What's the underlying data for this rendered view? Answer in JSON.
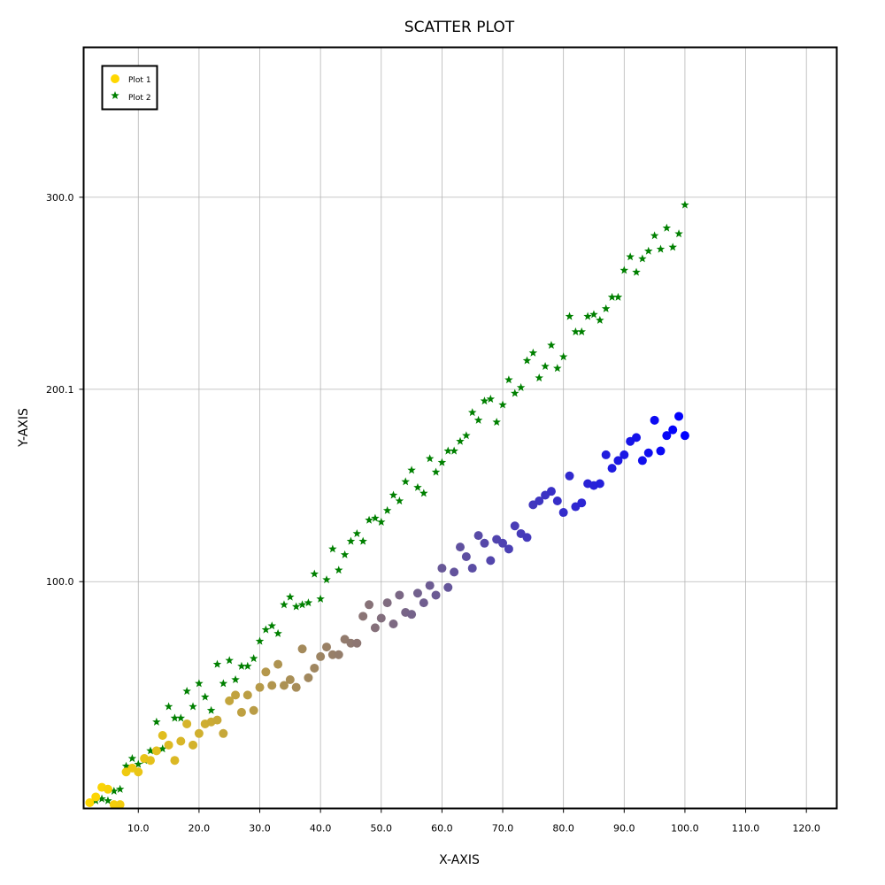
{
  "chart_data": {
    "type": "scatter",
    "title": "SCATTER PLOT",
    "xlabel": "X-AXIS",
    "ylabel": "Y-AXIS",
    "xlim": [
      1.0,
      125.0
    ],
    "ylim": [
      -18.0,
      378.0
    ],
    "xticks": [
      10.0,
      20.0,
      30.0,
      40.0,
      50.0,
      60.0,
      70.0,
      80.0,
      90.0,
      100.0,
      110.0,
      120.0
    ],
    "xtick_labels": [
      "10.0",
      "20.0",
      "30.0",
      "40.0",
      "50.0",
      "60.0",
      "70.0",
      "80.0",
      "90.0",
      "100.0",
      "110.0",
      "120.0"
    ],
    "yticks": [
      100.0,
      200.1,
      300.0
    ],
    "ytick_labels": [
      "100.0",
      "200.1",
      "300.0"
    ],
    "grid": true,
    "legend_position": "top-left",
    "series": [
      {
        "name": "Plot 1",
        "marker": "circle",
        "color_gradient": [
          "#ffd700",
          "#0000ff"
        ],
        "x": [
          2,
          3,
          4,
          5,
          6,
          7,
          8,
          9,
          10,
          11,
          12,
          13,
          14,
          15,
          16,
          17,
          18,
          19,
          20,
          21,
          22,
          23,
          24,
          25,
          26,
          27,
          28,
          29,
          30,
          31,
          32,
          33,
          34,
          35,
          36,
          37,
          38,
          39,
          40,
          41,
          42,
          43,
          44,
          45,
          46,
          47,
          48,
          49,
          50,
          51,
          52,
          53,
          54,
          55,
          56,
          57,
          58,
          59,
          60,
          61,
          62,
          63,
          64,
          65,
          66,
          67,
          68,
          69,
          70,
          71,
          72,
          73,
          74,
          75,
          76,
          77,
          78,
          79,
          80,
          81,
          82,
          83,
          84,
          85,
          86,
          87,
          88,
          89,
          90,
          91,
          92,
          93,
          94,
          95,
          96,
          97,
          98,
          99,
          100
        ],
        "y": [
          -15,
          -12,
          -7,
          -8,
          -16,
          -16,
          1,
          3,
          1,
          8,
          7,
          12,
          20,
          15,
          7,
          17,
          26,
          15,
          21,
          26,
          27,
          28,
          21,
          38,
          41,
          32,
          41,
          33,
          45,
          53,
          46,
          57,
          46,
          49,
          45,
          65,
          50,
          55,
          61,
          66,
          62,
          62,
          70,
          68,
          68,
          82,
          88,
          76,
          81,
          89,
          78,
          93,
          84,
          83,
          94,
          89,
          98,
          93,
          107,
          97,
          105,
          118,
          113,
          107,
          124,
          120,
          111,
          122,
          120,
          117,
          129,
          125,
          123,
          140,
          142,
          145,
          147,
          142,
          136,
          155,
          139,
          141,
          151,
          150,
          151,
          166,
          159,
          163,
          166,
          173,
          175,
          163,
          167,
          184,
          168,
          176,
          179,
          186,
          176
        ]
      },
      {
        "name": "Plot 2",
        "marker": "star",
        "color": "#008000",
        "x": [
          2,
          3,
          4,
          5,
          6,
          7,
          8,
          9,
          10,
          11,
          12,
          13,
          14,
          15,
          16,
          17,
          18,
          19,
          20,
          21,
          22,
          23,
          24,
          25,
          26,
          27,
          28,
          29,
          30,
          31,
          32,
          33,
          34,
          35,
          36,
          37,
          38,
          39,
          40,
          41,
          42,
          43,
          44,
          45,
          46,
          47,
          48,
          49,
          50,
          51,
          52,
          53,
          54,
          55,
          56,
          57,
          58,
          59,
          60,
          61,
          62,
          63,
          64,
          65,
          66,
          67,
          68,
          69,
          70,
          71,
          72,
          73,
          74,
          75,
          76,
          77,
          78,
          79,
          80,
          81,
          82,
          83,
          84,
          85,
          86,
          87,
          88,
          89,
          90,
          91,
          92,
          93,
          94,
          95,
          96,
          97,
          98,
          99,
          100
        ],
        "y": [
          -15,
          -14,
          -13,
          -14,
          -9,
          -8,
          4,
          8,
          5,
          7,
          12,
          27,
          13,
          35,
          29,
          29,
          43,
          35,
          47,
          40,
          33,
          57,
          47,
          59,
          49,
          56,
          56,
          60,
          69,
          75,
          77,
          73,
          88,
          92,
          87,
          88,
          89,
          104,
          91,
          101,
          117,
          106,
          114,
          121,
          125,
          121,
          132,
          133,
          131,
          137,
          145,
          142,
          152,
          158,
          149,
          146,
          164,
          157,
          162,
          168,
          168,
          173,
          176,
          188,
          184,
          194,
          195,
          183,
          192,
          205,
          198,
          201,
          215,
          219,
          206,
          212,
          223,
          211,
          217,
          238,
          230,
          230,
          238,
          239,
          236,
          242,
          248,
          248,
          262,
          269,
          261,
          268,
          272,
          280,
          273,
          284,
          274,
          281,
          296
        ]
      }
    ]
  }
}
